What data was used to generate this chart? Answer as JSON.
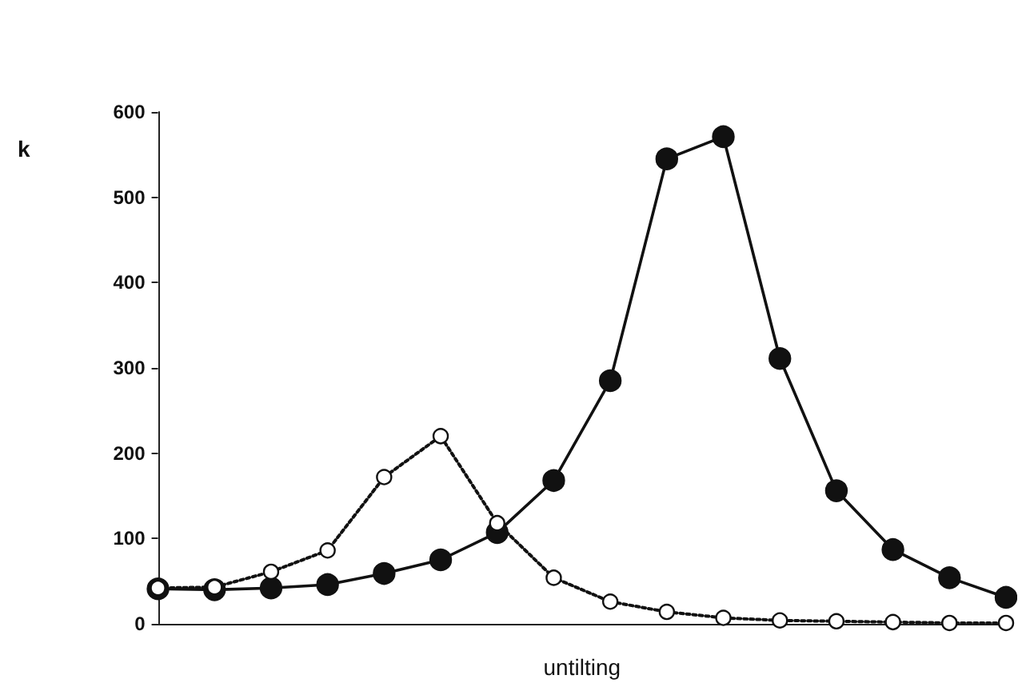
{
  "chart_data": {
    "type": "line",
    "xlabel": "untilting",
    "ylabel": "k",
    "categories": [
      null,
      null,
      null,
      null,
      null,
      null,
      null,
      null,
      null,
      null,
      null,
      null,
      null,
      null,
      null,
      null
    ],
    "ylim": [
      0,
      600
    ],
    "yticks": [
      0,
      100,
      200,
      300,
      400,
      500,
      600
    ],
    "series": [
      {
        "color": "#111111",
        "marker": "circle",
        "line_style": "solid",
        "values": [
          41,
          40,
          42,
          46,
          59,
          75,
          107,
          168,
          285,
          545,
          571,
          311,
          156,
          87,
          54,
          31
        ]
      },
      {
        "color": "#ffffff",
        "marker": "circle",
        "line_style": "dotted",
        "values": [
          42,
          43,
          61,
          86,
          172,
          220,
          118,
          54,
          26,
          14,
          7,
          4,
          3,
          2,
          1,
          1
        ]
      }
    ]
  }
}
